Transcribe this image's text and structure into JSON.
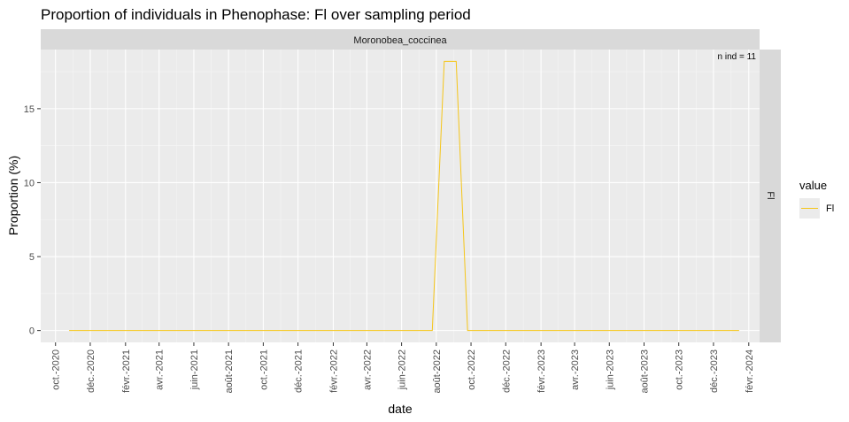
{
  "chart_data": {
    "type": "line",
    "title": "Proportion of individuals in Phenophase: Fl over sampling period",
    "xlabel": "date",
    "ylabel": "Proportion (%)",
    "facet_top": "Moronobea_coccinea",
    "facet_right": "Fl",
    "annotation": "n ind =  11",
    "legend": {
      "title": "value",
      "position": "right",
      "entries": [
        "Fl"
      ]
    },
    "colors": {
      "Fl": "#f5c518"
    },
    "ylim": [
      -0.8,
      19.0
    ],
    "yticks": [
      0,
      5,
      10,
      15
    ],
    "xlim": [
      "2020-09-05",
      "2024-02-20"
    ],
    "xticks": [
      {
        "date": "2020-10-01",
        "label": "oct.-2020"
      },
      {
        "date": "2020-12-01",
        "label": "déc.-2020"
      },
      {
        "date": "2021-02-01",
        "label": "févr.-2021"
      },
      {
        "date": "2021-04-01",
        "label": "avr.-2021"
      },
      {
        "date": "2021-06-01",
        "label": "juin-2021"
      },
      {
        "date": "2021-08-01",
        "label": "août-2021"
      },
      {
        "date": "2021-10-01",
        "label": "oct.-2021"
      },
      {
        "date": "2021-12-01",
        "label": "déc.-2021"
      },
      {
        "date": "2022-02-01",
        "label": "févr.-2022"
      },
      {
        "date": "2022-04-01",
        "label": "avr.-2022"
      },
      {
        "date": "2022-06-01",
        "label": "juin-2022"
      },
      {
        "date": "2022-08-01",
        "label": "août-2022"
      },
      {
        "date": "2022-10-01",
        "label": "oct.-2022"
      },
      {
        "date": "2022-12-01",
        "label": "déc.-2022"
      },
      {
        "date": "2023-02-01",
        "label": "févr.-2023"
      },
      {
        "date": "2023-04-01",
        "label": "avr.-2023"
      },
      {
        "date": "2023-06-01",
        "label": "juin-2023"
      },
      {
        "date": "2023-08-01",
        "label": "août-2023"
      },
      {
        "date": "2023-10-01",
        "label": "oct.-2023"
      },
      {
        "date": "2023-12-01",
        "label": "déc.-2023"
      },
      {
        "date": "2024-02-01",
        "label": "févr.-2024"
      }
    ],
    "grid": true,
    "series": [
      {
        "name": "Fl",
        "points": [
          {
            "x": "2020-10-25",
            "y": 0
          },
          {
            "x": "2022-07-25",
            "y": 0
          },
          {
            "x": "2022-08-15",
            "y": 18.2
          },
          {
            "x": "2022-09-05",
            "y": 18.2
          },
          {
            "x": "2022-09-25",
            "y": 0
          },
          {
            "x": "2024-01-15",
            "y": 0
          }
        ]
      }
    ]
  }
}
